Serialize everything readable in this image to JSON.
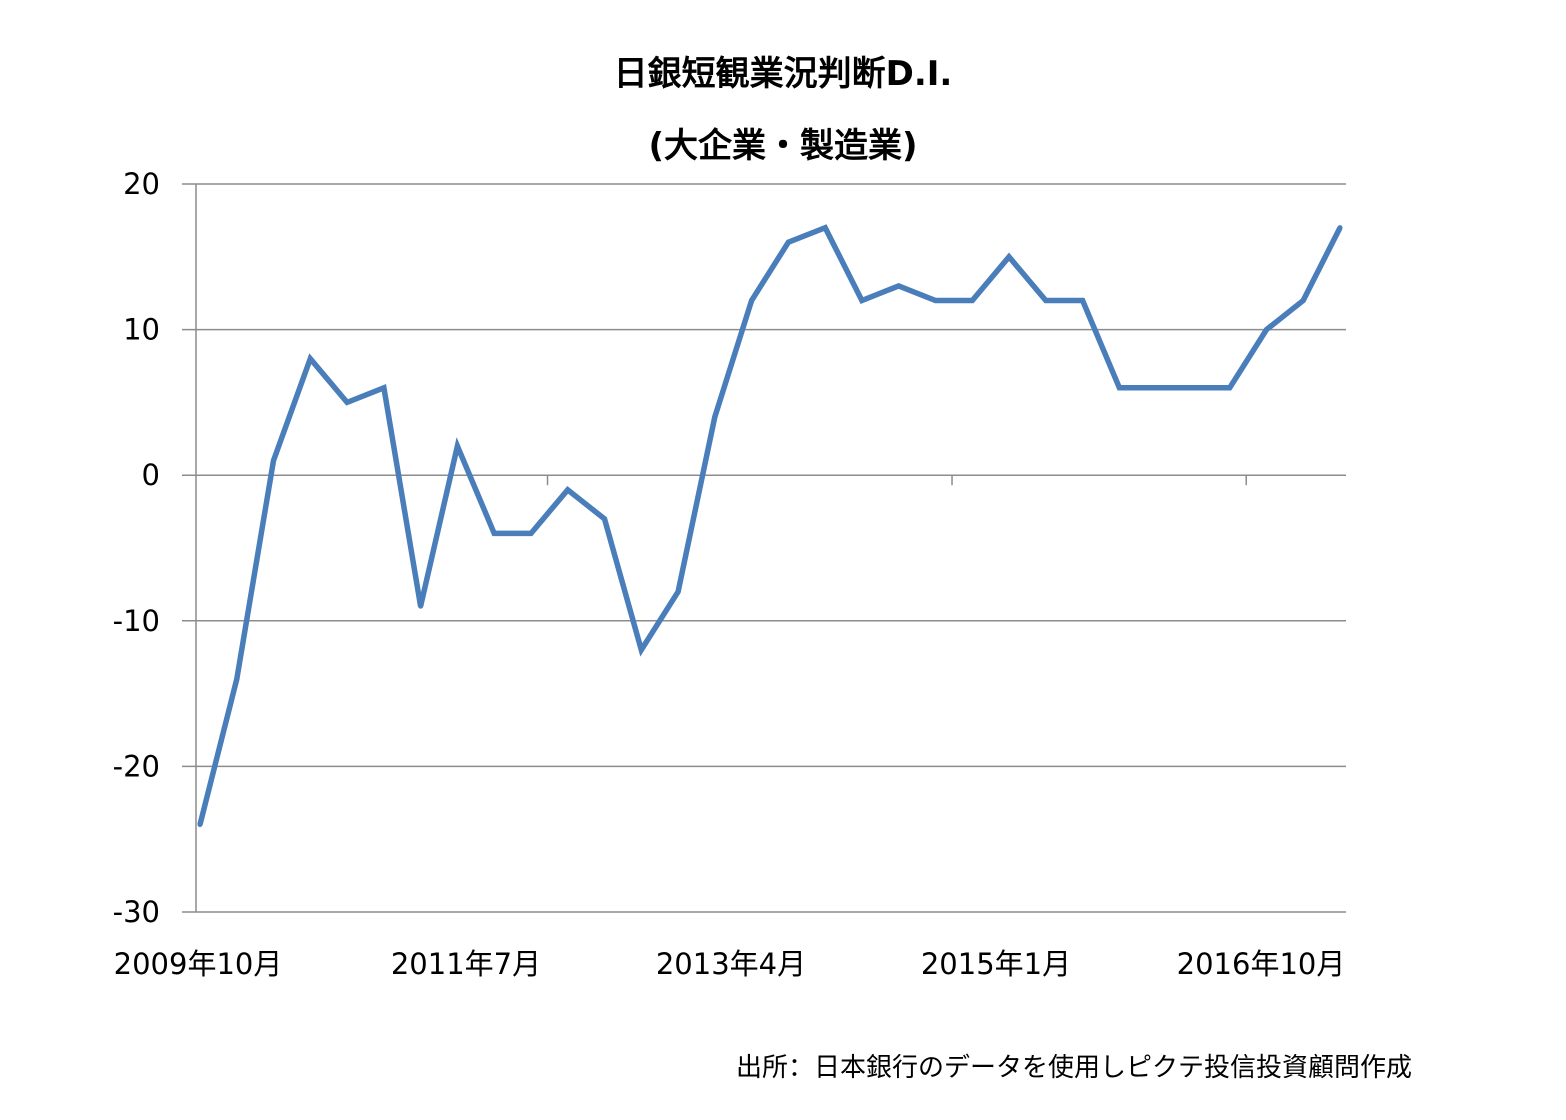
{
  "chart_data": {
    "type": "line",
    "title": "日銀短観業況判断D.I.",
    "subtitle": "(大企業・製造業)",
    "xlabel": "",
    "ylabel": "",
    "ylim": [
      -30,
      20
    ],
    "yticks": [
      "20",
      "10",
      "0",
      "-10",
      "-20",
      "-30"
    ],
    "xticks": [
      "2009年10月",
      "2011年7月",
      "2013年4月",
      "2015年1月",
      "2016年10月"
    ],
    "grid": true,
    "legend": "none",
    "x": [
      "2009-10",
      "2010-01",
      "2010-04",
      "2010-07",
      "2010-10",
      "2011-01",
      "2011-04",
      "2011-07",
      "2011-10",
      "2012-01",
      "2012-04",
      "2012-07",
      "2012-10",
      "2013-01",
      "2013-04",
      "2013-07",
      "2013-10",
      "2014-01",
      "2014-04",
      "2014-07",
      "2014-10",
      "2015-01",
      "2015-04",
      "2015-07",
      "2015-10",
      "2016-01",
      "2016-04",
      "2016-07",
      "2016-10",
      "2017-01",
      "2017-04",
      "2017-07"
    ],
    "series": [
      {
        "color": "#4a7ebb",
        "values": [
          -24,
          -14,
          1,
          8,
          5,
          6,
          -9,
          2,
          -4,
          -4,
          -1,
          -3,
          -12,
          -8,
          4,
          12,
          16,
          17,
          12,
          13,
          12,
          12,
          15,
          12,
          12,
          6,
          6,
          6,
          6,
          10,
          12,
          17
        ]
      }
    ],
    "source_note": "出所：日本銀行のデータを使用しピクテ投信投資顧問作成"
  }
}
